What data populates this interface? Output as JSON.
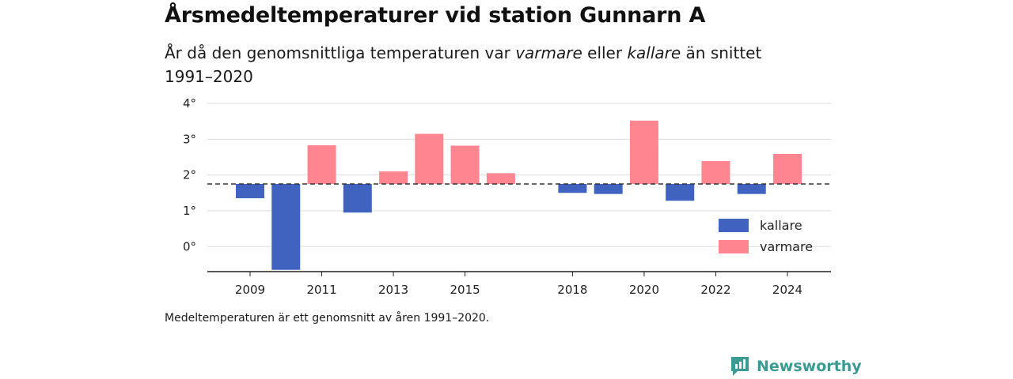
{
  "header": {
    "title": "Årsmedeltemperaturer vid station Gunnarn A",
    "subtitle_pre": "År då den genomsnittliga temperaturen var ",
    "subtitle_warm": "varmare",
    "subtitle_mid": " eller ",
    "subtitle_cold": "kallare",
    "subtitle_post": " än snittet 1991–2020"
  },
  "footer": {
    "note": "Medeltemperaturen är ett genomsnitt av åren 1991–2020.",
    "brand": "Newsworthy"
  },
  "colors": {
    "cold": "#4063c0",
    "warm": "#ff8591",
    "brand": "#3a9b92"
  },
  "chart_data": {
    "type": "bar",
    "baseline": 1.75,
    "x": [
      2009,
      2010,
      2011,
      2012,
      2013,
      2014,
      2015,
      2016,
      2017,
      2018,
      2019,
      2020,
      2021,
      2022,
      2023,
      2024
    ],
    "values": [
      1.35,
      -0.65,
      2.83,
      0.95,
      2.1,
      3.15,
      2.82,
      2.05,
      1.75,
      1.5,
      1.47,
      3.52,
      1.28,
      2.39,
      1.47,
      2.59
    ],
    "x_tick_labels": [
      "2009",
      "2011",
      "2013",
      "2015",
      "2018",
      "2020",
      "2022",
      "2024"
    ],
    "y_ticks": [
      0,
      1,
      2,
      3,
      4
    ],
    "y_tick_labels": [
      "0°",
      "1°",
      "2°",
      "3°",
      "4°"
    ],
    "ylim": [
      -0.7,
      4.0
    ],
    "grid": true,
    "legend": {
      "placement": "bottom-right",
      "entries": [
        {
          "label": "kallare",
          "color_key": "cold"
        },
        {
          "label": "varmare",
          "color_key": "warm"
        }
      ]
    }
  }
}
